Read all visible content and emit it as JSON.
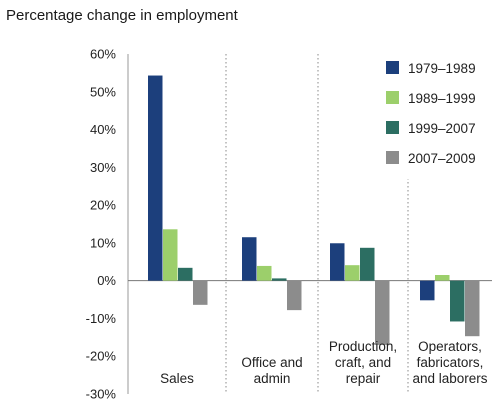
{
  "chart_data": {
    "type": "bar",
    "title": "Percentage change in employment",
    "xlabel": "",
    "ylabel": "",
    "ylim": [
      -30,
      60
    ],
    "yticks": [
      60,
      50,
      40,
      30,
      20,
      10,
      0,
      -10,
      -20,
      -30
    ],
    "ytick_labels": [
      "60%",
      "50%",
      "40%",
      "30%",
      "20%",
      "10%",
      "0%",
      "-10%",
      "-20%",
      "-30%"
    ],
    "categories": [
      [
        "Sales"
      ],
      [
        "Office and",
        "admin"
      ],
      [
        "Production,",
        "craft, and",
        "repair"
      ],
      [
        "Operators,",
        "fabricators,",
        "and laborers"
      ]
    ],
    "series": [
      {
        "name": "1979–1989",
        "color": "#1c3f7c",
        "values": [
          54.3,
          11.5,
          9.9,
          -5.2
        ]
      },
      {
        "name": "1989–1999",
        "color": "#9ccf6b",
        "values": [
          13.6,
          3.9,
          4.1,
          1.5
        ]
      },
      {
        "name": "1999–2007",
        "color": "#2c6e62",
        "values": [
          3.4,
          0.6,
          8.7,
          -10.8
        ]
      },
      {
        "name": "2007–2009",
        "color": "#8c8c8c",
        "values": [
          -6.4,
          -7.8,
          -17.0,
          -14.7
        ]
      }
    ],
    "grid": false,
    "legend_position": "top-right"
  }
}
